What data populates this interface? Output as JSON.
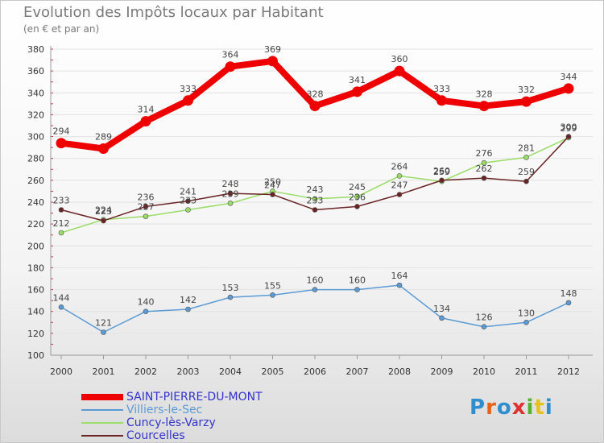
{
  "title": "Evolution des Impôts locaux par Habitant",
  "subtitle": "(en € et par an)",
  "logo": {
    "text": "Proxiti",
    "letter_colors": [
      "#2e8ed0",
      "#e8621a",
      "#2e8ed0",
      "#e03030",
      "#58b030",
      "#e8c020",
      "#2e8ed0"
    ]
  },
  "chart_data": {
    "type": "line",
    "title": "Evolution des Impôts locaux par Habitant",
    "subtitle": "(en € et par an)",
    "xlabel": "",
    "ylabel": "",
    "x": [
      "2000",
      "2001",
      "2002",
      "2003",
      "2004",
      "2005",
      "2006",
      "2007",
      "2008",
      "2009",
      "2010",
      "2011",
      "2012"
    ],
    "ylim": [
      100,
      380
    ],
    "yticks": [
      "100",
      "120",
      "140",
      "160",
      "180",
      "200",
      "220",
      "240",
      "260",
      "280",
      "300",
      "320",
      "340",
      "360",
      "380"
    ],
    "grid": true,
    "legend_position": "bottom-left",
    "series": [
      {
        "name": "SAINT-PIERRE-DU-MONT",
        "color": "#ee0000",
        "text_color": "#3333cc",
        "emphasis": true,
        "values": [
          294,
          289,
          314,
          333,
          364,
          369,
          328,
          341,
          360,
          333,
          328,
          332,
          344
        ]
      },
      {
        "name": "Villiers-le-Sec",
        "color": "#5a9bd5",
        "text_color": "#5a9bd5",
        "emphasis": false,
        "values": [
          144,
          121,
          140,
          142,
          153,
          155,
          160,
          160,
          164,
          134,
          126,
          130,
          148
        ]
      },
      {
        "name": "Cuncy-lès-Varzy",
        "color": "#99dd66",
        "text_color": "#3333cc",
        "emphasis": false,
        "values": [
          212,
          224,
          227,
          233,
          239,
          250,
          243,
          245,
          264,
          259,
          276,
          281,
          299
        ]
      },
      {
        "name": "Courcelles",
        "color": "#6b2424",
        "text_color": "#3333cc",
        "emphasis": false,
        "values": [
          233,
          223,
          236,
          241,
          248,
          247,
          233,
          236,
          247,
          260,
          262,
          259,
          300
        ]
      }
    ]
  }
}
